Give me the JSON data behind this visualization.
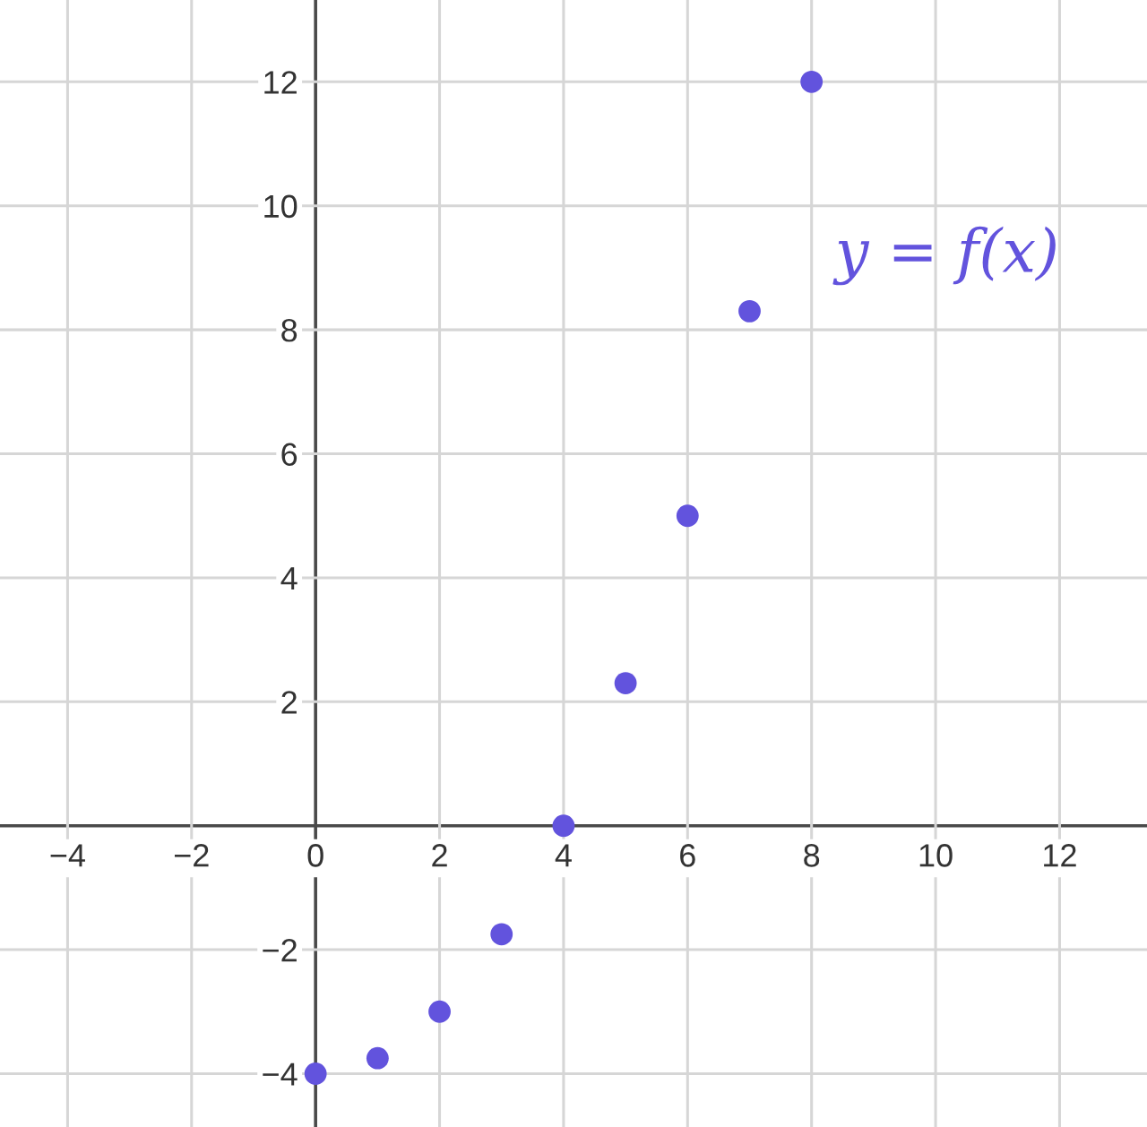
{
  "chart_data": {
    "type": "scatter",
    "x": [
      0,
      1,
      2,
      3,
      4,
      5,
      6,
      7,
      8
    ],
    "values": [
      -4,
      -3.75,
      -3,
      -1.75,
      0,
      2.3,
      5,
      8.3,
      12
    ],
    "color": "#6253dd",
    "marker": "circle",
    "xlim": [
      -5.09,
      13.41
    ],
    "ylim": [
      -4.86,
      13.32
    ],
    "xticks": [
      {
        "value": -4,
        "label": "−4"
      },
      {
        "value": -2,
        "label": "−2"
      },
      0,
      2,
      4,
      6,
      8,
      10,
      12
    ],
    "yticks": [
      {
        "value": -4,
        "label": "−4"
      },
      {
        "value": -2,
        "label": "−2"
      },
      {
        "value": 0,
        "label": null
      },
      2,
      4,
      6,
      8,
      10,
      12
    ],
    "grid": true,
    "annotations": [
      "y = f(x)"
    ]
  }
}
